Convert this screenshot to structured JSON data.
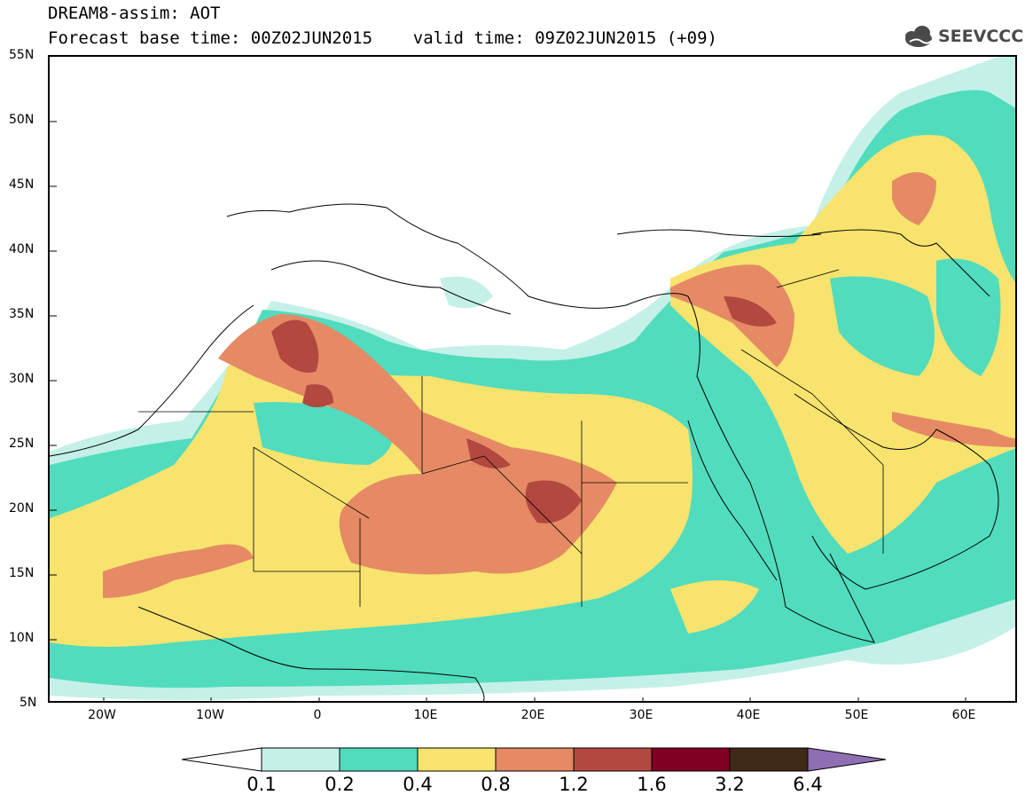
{
  "title": {
    "line1": "DREAM8-assim: AOT",
    "line2": "Forecast base time: 00Z02JUN2015    valid time: 09Z02JUN2015 (+09)"
  },
  "logo": {
    "text": "SEEVCCC",
    "icon": "cloud-icon"
  },
  "map": {
    "lat_labels": [
      "55N",
      "50N",
      "45N",
      "40N",
      "35N",
      "30N",
      "25N",
      "20N",
      "15N",
      "10N",
      "5N"
    ],
    "lon_labels": [
      "20W",
      "10W",
      "0",
      "10E",
      "20E",
      "30E",
      "40E",
      "50E",
      "60E"
    ],
    "region": "Sahara, Mediterranean and Middle East",
    "variable": "AOT"
  },
  "colorbar": {
    "labels": [
      "0.1",
      "0.2",
      "0.4",
      "0.8",
      "1.2",
      "1.6",
      "3.2",
      "6.4"
    ],
    "colors": [
      "#ffffff",
      "#c4f0e8",
      "#50dcbd",
      "#f7e36e",
      "#e58a64",
      "#b2483f",
      "#800023",
      "#3f2a17",
      "#8e6fb4"
    ]
  }
}
